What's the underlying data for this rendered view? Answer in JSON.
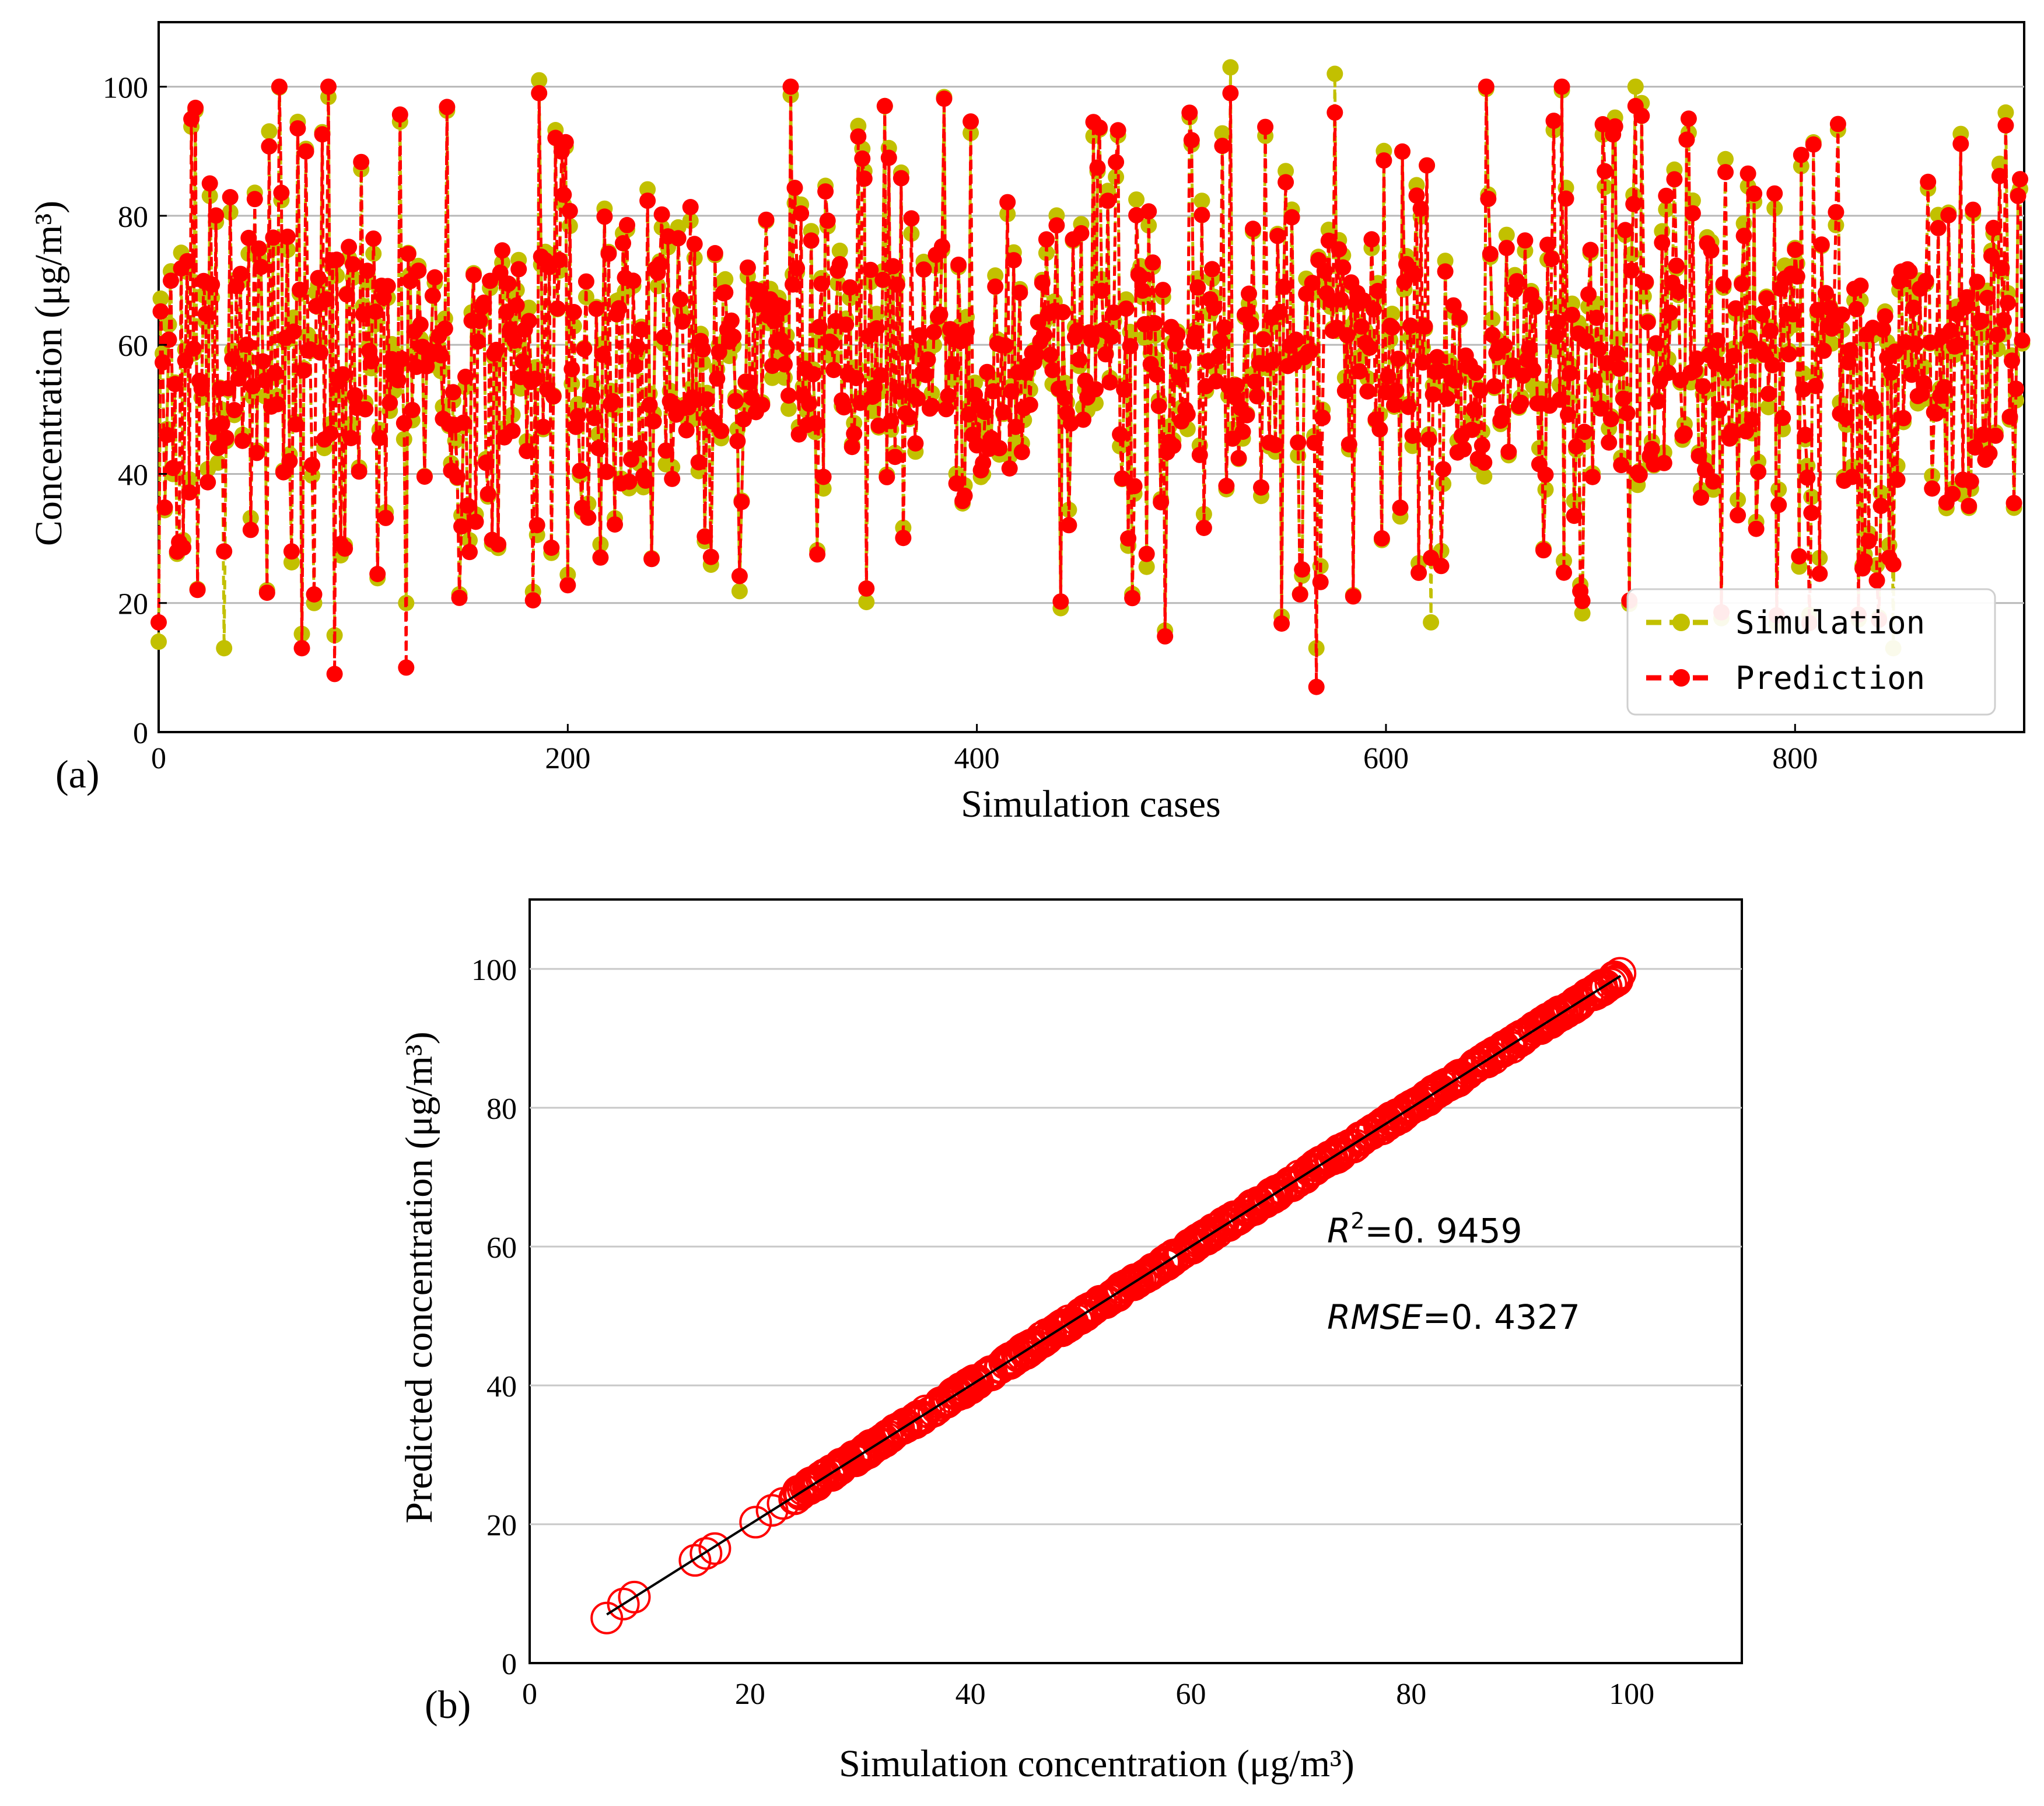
{
  "chart_data": [
    {
      "panel_label": "(a)",
      "type": "line",
      "title": "",
      "xlabel": "Simulation cases",
      "ylabel": "Concentration (μg/m³)",
      "xlim": [
        0,
        912
      ],
      "ylim": [
        0,
        110
      ],
      "xticks": [
        "0",
        "200",
        "400",
        "600",
        "800"
      ],
      "xtick_values": [
        0,
        200,
        400,
        600,
        800
      ],
      "yticks": [
        "0",
        "20",
        "40",
        "60",
        "80",
        "100"
      ],
      "ytick_values": [
        0,
        20,
        40,
        60,
        80,
        100
      ],
      "grid": "horizontal",
      "legend_position": "bottom-right",
      "n_cases": 912,
      "series": [
        {
          "name": "Simulation",
          "color": "#c2c000",
          "style": "dashed",
          "marker": "circle"
        },
        {
          "name": "Prediction",
          "color": "#ff0000",
          "style": "dashed",
          "marker": "circle"
        }
      ],
      "notable_points": [
        {
          "case": 0,
          "simulation": 14,
          "prediction": 17
        },
        {
          "case": 32,
          "simulation": 13,
          "prediction": 28
        },
        {
          "case": 86,
          "simulation": 15,
          "prediction": 9
        },
        {
          "case": 121,
          "simulation": 20,
          "prediction": 10
        },
        {
          "case": 186,
          "simulation": 101,
          "prediction": 99
        },
        {
          "case": 355,
          "simulation": 97,
          "prediction": 97
        },
        {
          "case": 524,
          "simulation": 103,
          "prediction": 99
        },
        {
          "case": 566,
          "simulation": 13,
          "prediction": 7
        },
        {
          "case": 575,
          "simulation": 102,
          "prediction": 96
        },
        {
          "case": 622,
          "simulation": 17,
          "prediction": 27
        },
        {
          "case": 722,
          "simulation": 100,
          "prediction": 97
        },
        {
          "case": 848,
          "simulation": 13,
          "prediction": 26
        },
        {
          "case": 903,
          "simulation": 96,
          "prediction": 94
        }
      ]
    },
    {
      "panel_label": "(b)",
      "type": "scatter",
      "title": "",
      "xlabel": "Simulation concentration (μg/m³)",
      "ylabel": "Predicted concentration (μg/m³)",
      "xlim": [
        0,
        110
      ],
      "ylim": [
        0,
        110
      ],
      "xticks": [
        "0",
        "20",
        "40",
        "60",
        "80",
        "100"
      ],
      "xtick_values": [
        0,
        20,
        40,
        60,
        80,
        100
      ],
      "yticks": [
        "0",
        "20",
        "40",
        "60",
        "80",
        "100"
      ],
      "ytick_values": [
        0,
        20,
        40,
        60,
        80,
        100
      ],
      "grid": "horizontal",
      "marker": "open-circle",
      "color": "#ff0000",
      "fit_line": {
        "from": [
          7,
          7
        ],
        "to": [
          99,
          99
        ],
        "color": "#000000"
      },
      "point_range": [
        7,
        99
      ],
      "sparse_points": [
        [
          7,
          6.5
        ],
        [
          8.5,
          8.5
        ],
        [
          9.5,
          9.5
        ],
        [
          15,
          14.8
        ],
        [
          16,
          15.8
        ],
        [
          16.8,
          16.5
        ],
        [
          20.5,
          20.3
        ],
        [
          22,
          22
        ],
        [
          23,
          23
        ]
      ],
      "annotations": {
        "r2_label": "R",
        "r2_sup": "2",
        "r2_value": "=0. 9459",
        "rmse_label": "RMSE",
        "rmse_value": "=0. 4327"
      }
    }
  ]
}
